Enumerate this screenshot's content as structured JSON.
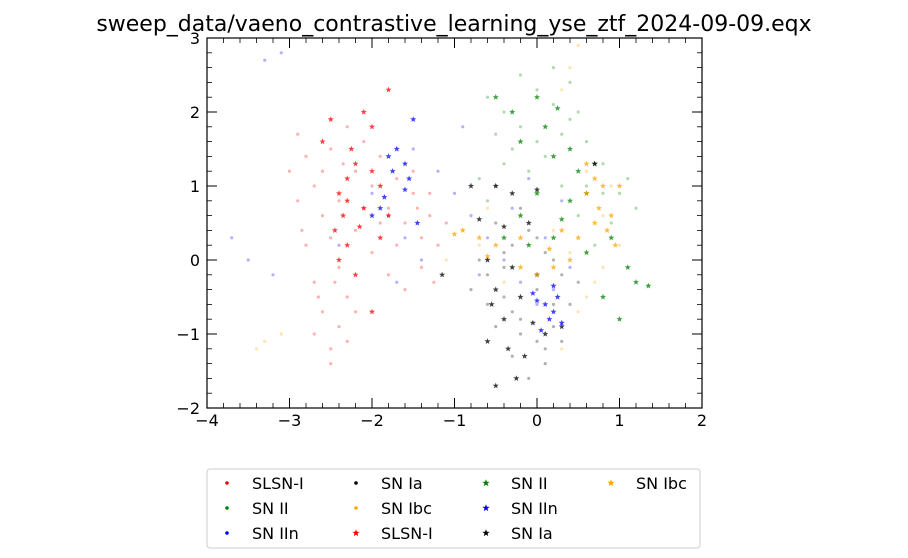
{
  "chart_data": {
    "type": "scatter",
    "title": "sweep_data/vaeno_contrastive_learning_yse_ztf_2024-09-09.eqx",
    "xlabel": "",
    "ylabel": "",
    "xlim": [
      -4,
      2
    ],
    "ylim": [
      -2,
      3
    ],
    "xticks": [
      "−4",
      "−3",
      "−2",
      "−1",
      "0",
      "1",
      "2"
    ],
    "yticks": [
      "−2",
      "−1",
      "0",
      "1",
      "2",
      "3"
    ],
    "xtick_values": [
      -4,
      -3,
      -2,
      -1,
      0,
      1,
      2
    ],
    "ytick_values": [
      -2,
      -1,
      0,
      1,
      2,
      3
    ],
    "legend_placement": "below plot",
    "legend": [
      {
        "label": "SLSN-I",
        "color": "#ff0000",
        "marker": "dot"
      },
      {
        "label": "SN II",
        "color": "#008000",
        "marker": "dot"
      },
      {
        "label": "SN IIn",
        "color": "#0000ff",
        "marker": "dot"
      },
      {
        "label": "SN Ia",
        "color": "#000000",
        "marker": "dot"
      },
      {
        "label": "SN Ibc",
        "color": "#ffa500",
        "marker": "dot"
      },
      {
        "label": "SLSN-I",
        "color": "#ff0000",
        "marker": "star"
      },
      {
        "label": "SN II",
        "color": "#008000",
        "marker": "star"
      },
      {
        "label": "SN IIn",
        "color": "#0000ff",
        "marker": "star"
      },
      {
        "label": "SN Ia",
        "color": "#000000",
        "marker": "star"
      },
      {
        "label": "SN Ibc",
        "color": "#ffa500",
        "marker": "star"
      }
    ],
    "series": [
      {
        "name": "SLSN-I",
        "marker": "dot",
        "color": "#ff0000",
        "points": [
          [
            -2.9,
            1.7
          ],
          [
            -2.8,
            1.4
          ],
          [
            -2.7,
            1.0
          ],
          [
            -2.6,
            0.6
          ],
          [
            -2.5,
            0.3
          ],
          [
            -2.4,
            -0.1
          ],
          [
            -2.3,
            -0.5
          ],
          [
            -2.4,
            -0.9
          ],
          [
            -2.5,
            -1.2
          ],
          [
            -2.6,
            -0.7
          ],
          [
            -2.7,
            -0.3
          ],
          [
            -2.8,
            0.2
          ],
          [
            -2.2,
            1.2
          ],
          [
            -2.0,
            1.0
          ],
          [
            -1.8,
            0.7
          ],
          [
            -1.6,
            0.5
          ],
          [
            -1.4,
            0.3
          ],
          [
            -1.3,
            0.6
          ],
          [
            -1.5,
            0.9
          ],
          [
            -1.7,
            1.1
          ],
          [
            -1.9,
            1.4
          ],
          [
            -2.1,
            1.6
          ],
          [
            -2.3,
            1.8
          ],
          [
            -2.5,
            1.5
          ],
          [
            -2.6,
            1.2
          ],
          [
            -2.4,
            0.8
          ],
          [
            -2.2,
            0.4
          ],
          [
            -2.0,
            0.1
          ],
          [
            -1.8,
            -0.2
          ],
          [
            -1.6,
            -0.4
          ],
          [
            -1.4,
            -0.1
          ],
          [
            -1.2,
            0.2
          ],
          [
            -1.1,
            0.5
          ],
          [
            -1.3,
            0.9
          ],
          [
            -1.5,
            1.2
          ],
          [
            -2.7,
            -1.0
          ],
          [
            -2.5,
            -1.4
          ],
          [
            -2.3,
            -1.1
          ],
          [
            -2.2,
            -0.7
          ],
          [
            -2.9,
            0.8
          ],
          [
            -3.0,
            1.2
          ],
          [
            -2.85,
            0.4
          ],
          [
            -1.9,
            0.5
          ],
          [
            -1.7,
            0.2
          ],
          [
            -2.1,
            0.7
          ],
          [
            -2.35,
            1.3
          ],
          [
            -2.65,
            -0.5
          ],
          [
            -2.45,
            -0.3
          ],
          [
            -1.25,
            -0.3
          ],
          [
            -1.45,
            0.7
          ]
        ]
      },
      {
        "name": "SN II",
        "marker": "dot",
        "color": "#008000",
        "points": [
          [
            -0.6,
            2.2
          ],
          [
            -0.4,
            2.0
          ],
          [
            -0.2,
            1.8
          ],
          [
            0.0,
            2.3
          ],
          [
            0.2,
            2.1
          ],
          [
            0.4,
            1.9
          ],
          [
            0.6,
            1.6
          ],
          [
            0.8,
            1.3
          ],
          [
            1.0,
            0.9
          ],
          [
            0.9,
            0.5
          ],
          [
            0.7,
            0.2
          ],
          [
            0.5,
            0.6
          ],
          [
            0.3,
            1.0
          ],
          [
            0.1,
            1.4
          ],
          [
            -0.1,
            1.2
          ],
          [
            -0.3,
            1.5
          ],
          [
            -0.5,
            1.7
          ],
          [
            -0.7,
            1.1
          ],
          [
            0.2,
            2.6
          ],
          [
            0.4,
            2.4
          ],
          [
            -0.2,
            2.5
          ],
          [
            1.1,
            1.1
          ],
          [
            1.2,
            0.7
          ],
          [
            0.6,
            1.0
          ],
          [
            0.0,
            1.6
          ],
          [
            -0.4,
            1.3
          ],
          [
            0.3,
            1.7
          ],
          [
            0.8,
            0.9
          ],
          [
            0.5,
            2.0
          ],
          [
            -0.6,
            0.8
          ]
        ]
      },
      {
        "name": "SN IIn",
        "marker": "dot",
        "color": "#0000ff",
        "points": [
          [
            -3.3,
            2.7
          ],
          [
            -3.1,
            2.8
          ],
          [
            -2.0,
            0.9
          ],
          [
            -1.8,
            0.6
          ],
          [
            -1.6,
            0.3
          ],
          [
            -1.4,
            0.0
          ],
          [
            -1.7,
            -0.3
          ],
          [
            -3.5,
            0.0
          ],
          [
            -3.2,
            -0.2
          ],
          [
            -0.8,
            0.6
          ],
          [
            -0.6,
            0.3
          ],
          [
            -0.4,
            0.0
          ],
          [
            -0.2,
            -0.3
          ],
          [
            0.0,
            -0.6
          ],
          [
            0.2,
            -0.4
          ],
          [
            0.4,
            -0.1
          ],
          [
            -0.5,
            1.0
          ],
          [
            -0.3,
            0.7
          ],
          [
            -1.2,
            1.2
          ],
          [
            -1.5,
            1.5
          ],
          [
            0.1,
            0.3
          ],
          [
            -0.7,
            -0.2
          ],
          [
            -1.0,
            0.9
          ],
          [
            -0.9,
            1.8
          ],
          [
            -3.7,
            0.3
          ],
          [
            -2.4,
            0.2
          ],
          [
            0.3,
            0.8
          ],
          [
            -0.1,
            1.1
          ]
        ]
      },
      {
        "name": "SN Ia",
        "marker": "dot",
        "color": "#000000",
        "points": [
          [
            -0.6,
            -0.2
          ],
          [
            -0.4,
            -0.5
          ],
          [
            -0.2,
            -0.8
          ],
          [
            0.0,
            -1.1
          ],
          [
            0.2,
            -0.9
          ],
          [
            0.4,
            -0.6
          ],
          [
            0.3,
            -0.2
          ],
          [
            0.1,
            0.1
          ],
          [
            -0.1,
            0.4
          ],
          [
            -0.3,
            0.2
          ],
          [
            -0.5,
            0.5
          ],
          [
            -0.7,
            0.0
          ],
          [
            -0.5,
            -0.9
          ],
          [
            -0.3,
            -1.3
          ],
          [
            -0.1,
            -1.6
          ],
          [
            0.1,
            -1.4
          ],
          [
            0.3,
            -1.1
          ],
          [
            0.5,
            -0.3
          ],
          [
            -0.2,
            0.7
          ],
          [
            0.0,
            0.3
          ],
          [
            0.2,
            0.0
          ],
          [
            -0.4,
            -0.1
          ],
          [
            -0.6,
            -0.6
          ],
          [
            -0.8,
            -0.4
          ],
          [
            0.0,
            -0.4
          ],
          [
            -0.2,
            -1.0
          ],
          [
            0.2,
            -0.6
          ],
          [
            -0.4,
            0.1
          ],
          [
            0.1,
            -1.2
          ],
          [
            -0.3,
            -0.7
          ]
        ]
      },
      {
        "name": "SN Ibc",
        "marker": "dot",
        "color": "#ffa500",
        "points": [
          [
            -3.3,
            -1.1
          ],
          [
            -3.1,
            -1.0
          ],
          [
            -3.4,
            -1.2
          ],
          [
            0.4,
            2.6
          ],
          [
            0.5,
            2.9
          ],
          [
            0.3,
            2.3
          ],
          [
            0.6,
            1.2
          ],
          [
            0.8,
            0.6
          ],
          [
            1.0,
            0.2
          ],
          [
            0.7,
            -0.3
          ],
          [
            0.5,
            -0.7
          ],
          [
            0.3,
            -1.2
          ],
          [
            -0.9,
            0.4
          ],
          [
            -0.7,
            0.2
          ],
          [
            -1.1,
            0.0
          ],
          [
            0.9,
            1.0
          ],
          [
            0.2,
            0.4
          ],
          [
            -0.4,
            -0.3
          ],
          [
            -0.6,
            0.7
          ],
          [
            0.4,
            0.1
          ],
          [
            0.6,
            -0.5
          ],
          [
            0.8,
            -0.1
          ]
        ]
      },
      {
        "name": "SLSN-I",
        "marker": "star",
        "color": "#ff0000",
        "points": [
          [
            -2.5,
            1.9
          ],
          [
            -2.2,
            1.3
          ],
          [
            -2.3,
            1.1
          ],
          [
            -2.0,
            1.2
          ],
          [
            -1.9,
            1.0
          ],
          [
            -2.4,
            0.9
          ],
          [
            -2.3,
            0.8
          ],
          [
            -2.1,
            0.7
          ],
          [
            -1.8,
            0.6
          ],
          [
            -2.45,
            0.4
          ],
          [
            -2.3,
            0.2
          ],
          [
            -2.4,
            0.0
          ],
          [
            -2.2,
            -0.2
          ],
          [
            -2.0,
            -0.7
          ],
          [
            -2.1,
            2.0
          ],
          [
            -1.8,
            2.3
          ],
          [
            -2.0,
            1.8
          ],
          [
            -2.6,
            1.6
          ],
          [
            -1.9,
            0.3
          ],
          [
            -2.25,
            1.5
          ],
          [
            -2.35,
            0.6
          ],
          [
            -2.15,
            0.45
          ]
        ]
      },
      {
        "name": "SN II",
        "marker": "star",
        "color": "#008000",
        "points": [
          [
            -0.3,
            2.0
          ],
          [
            0.0,
            2.2
          ],
          [
            0.1,
            1.8
          ],
          [
            -0.2,
            1.6
          ],
          [
            0.2,
            1.4
          ],
          [
            0.4,
            1.5
          ],
          [
            0.5,
            1.2
          ],
          [
            0.6,
            0.9
          ],
          [
            0.7,
            1.3
          ],
          [
            0.4,
            0.8
          ],
          [
            0.0,
            0.9
          ],
          [
            -0.2,
            0.6
          ],
          [
            0.2,
            0.3
          ],
          [
            0.9,
            0.3
          ],
          [
            1.1,
            -0.1
          ],
          [
            1.2,
            -0.3
          ],
          [
            1.35,
            -0.35
          ],
          [
            1.0,
            -0.8
          ],
          [
            0.8,
            -0.5
          ],
          [
            -0.4,
            0.3
          ],
          [
            -0.1,
            0.2
          ],
          [
            0.3,
            0.55
          ],
          [
            0.6,
            0.1
          ],
          [
            -0.5,
            2.2
          ],
          [
            0.25,
            2.05
          ]
        ]
      },
      {
        "name": "SN IIn",
        "marker": "star",
        "color": "#0000ff",
        "points": [
          [
            -1.7,
            1.5
          ],
          [
            -1.6,
            1.3
          ],
          [
            -1.55,
            1.1
          ],
          [
            -1.8,
            1.4
          ],
          [
            -1.75,
            1.2
          ],
          [
            -1.6,
            0.95
          ],
          [
            -1.5,
            1.9
          ],
          [
            -1.85,
            0.85
          ],
          [
            -1.9,
            0.7
          ],
          [
            -2.0,
            0.6
          ],
          [
            -1.45,
            0.5
          ],
          [
            0.0,
            -0.55
          ],
          [
            0.1,
            -0.6
          ],
          [
            0.2,
            -0.7
          ],
          [
            0.15,
            -0.8
          ],
          [
            0.05,
            -0.95
          ],
          [
            0.25,
            -0.5
          ],
          [
            0.3,
            -0.85
          ],
          [
            -0.05,
            -0.45
          ],
          [
            0.2,
            -0.35
          ]
        ]
      },
      {
        "name": "SN Ia",
        "marker": "star",
        "color": "#000000",
        "points": [
          [
            -0.8,
            1.0
          ],
          [
            -0.5,
            1.0
          ],
          [
            -0.3,
            0.9
          ],
          [
            0.0,
            0.95
          ],
          [
            -0.7,
            0.55
          ],
          [
            -0.4,
            0.45
          ],
          [
            -0.1,
            0.5
          ],
          [
            -0.6,
            0.0
          ],
          [
            -0.3,
            -0.1
          ],
          [
            -0.5,
            -0.4
          ],
          [
            -0.2,
            -0.5
          ],
          [
            0.0,
            -0.2
          ],
          [
            -0.4,
            -0.8
          ],
          [
            -0.6,
            -1.1
          ],
          [
            -0.35,
            -1.2
          ],
          [
            -0.15,
            -1.3
          ],
          [
            -0.5,
            -1.7
          ],
          [
            -0.25,
            -1.6
          ],
          [
            0.1,
            -1.0
          ],
          [
            0.3,
            -0.9
          ],
          [
            0.7,
            1.3
          ],
          [
            -1.15,
            -0.2
          ],
          [
            -0.55,
            -0.6
          ],
          [
            -0.05,
            -0.85
          ]
        ]
      },
      {
        "name": "SN Ibc",
        "marker": "star",
        "color": "#ffa500",
        "points": [
          [
            0.7,
            1.1
          ],
          [
            0.8,
            1.0
          ],
          [
            0.6,
            0.9
          ],
          [
            0.75,
            0.7
          ],
          [
            0.9,
            0.6
          ],
          [
            0.85,
            0.4
          ],
          [
            0.95,
            0.2
          ],
          [
            0.7,
            0.5
          ],
          [
            0.5,
            0.3
          ],
          [
            0.4,
            0.0
          ],
          [
            0.2,
            -0.1
          ],
          [
            0.0,
            -0.2
          ],
          [
            -0.2,
            -0.1
          ],
          [
            -0.5,
            0.2
          ],
          [
            -0.6,
            0.05
          ],
          [
            -0.7,
            0.3
          ],
          [
            -0.9,
            0.4
          ],
          [
            -1.0,
            0.35
          ],
          [
            -0.2,
            0.3
          ],
          [
            0.15,
            0.15
          ],
          [
            0.3,
            0.4
          ],
          [
            1.0,
            1.0
          ],
          [
            0.6,
            1.3
          ]
        ]
      }
    ]
  }
}
